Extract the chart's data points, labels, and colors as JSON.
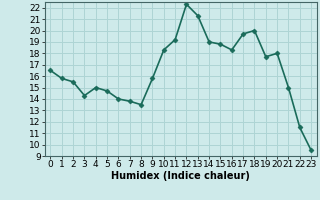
{
  "x": [
    0,
    1,
    2,
    3,
    4,
    5,
    6,
    7,
    8,
    9,
    10,
    11,
    12,
    13,
    14,
    15,
    16,
    17,
    18,
    19,
    20,
    21,
    22,
    23
  ],
  "y": [
    16.5,
    15.8,
    15.5,
    14.3,
    15.0,
    14.7,
    14.0,
    13.8,
    13.5,
    15.8,
    18.3,
    19.2,
    22.3,
    21.3,
    19.0,
    18.8,
    18.3,
    19.7,
    20.0,
    17.7,
    18.0,
    15.0,
    11.5,
    9.5
  ],
  "line_color": "#1a6b5a",
  "marker": "D",
  "marker_size": 2.5,
  "bg_color": "#ceeaea",
  "grid_color": "#aed4d4",
  "xlabel": "Humidex (Indice chaleur)",
  "ylim": [
    9,
    22.5
  ],
  "xlim": [
    -0.5,
    23.5
  ],
  "yticks": [
    9,
    10,
    11,
    12,
    13,
    14,
    15,
    16,
    17,
    18,
    19,
    20,
    21,
    22
  ],
  "xticks": [
    0,
    1,
    2,
    3,
    4,
    5,
    6,
    7,
    8,
    9,
    10,
    11,
    12,
    13,
    14,
    15,
    16,
    17,
    18,
    19,
    20,
    21,
    22,
    23
  ],
  "xlabel_fontsize": 7,
  "tick_fontsize": 6.5,
  "line_width": 1.2
}
